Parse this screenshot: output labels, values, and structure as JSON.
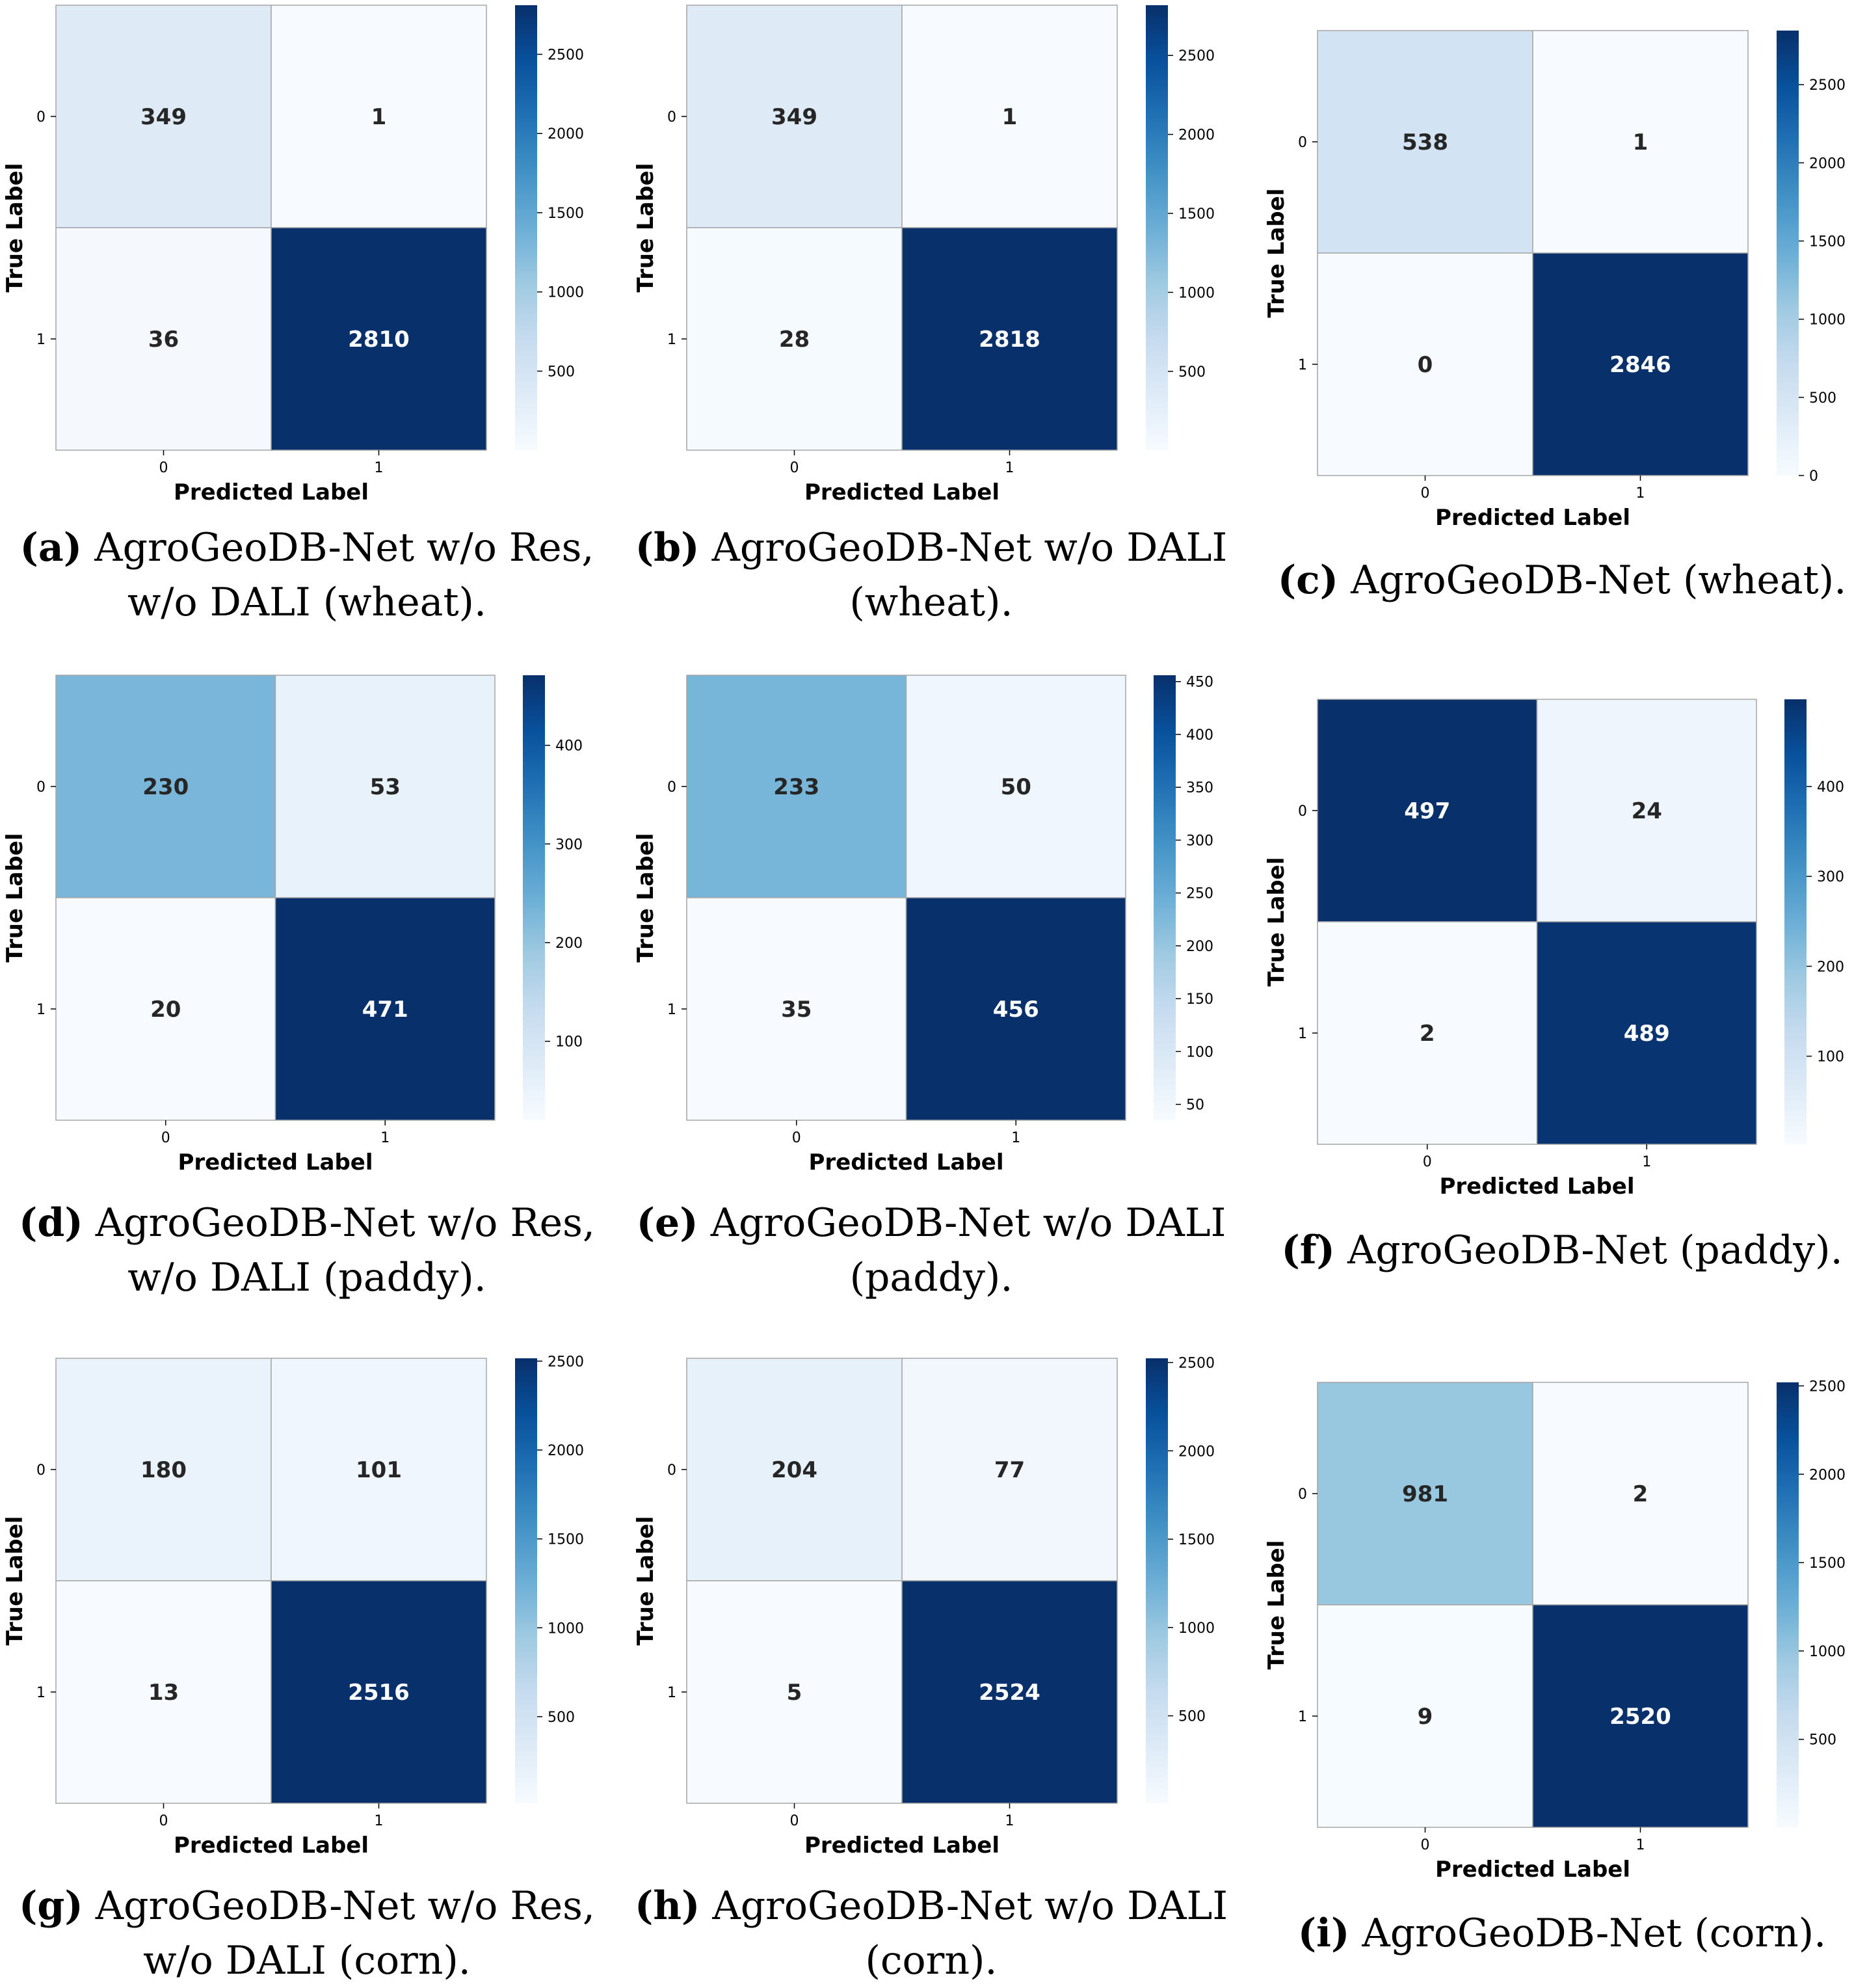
{
  "colors": {
    "cmap": [
      "#f7fbff",
      "#deebf7",
      "#c6dbef",
      "#9ecae1",
      "#6baed6",
      "#4292c6",
      "#2171b5",
      "#08519c",
      "#08306b"
    ],
    "dark_text": "#262626",
    "light_text": "#ffffff",
    "grid_line": "#a6a6a6"
  },
  "chart_data": [
    {
      "id": "a",
      "type": "heatmap",
      "x_categories": [
        "0",
        "1"
      ],
      "y_categories": [
        "0",
        "1"
      ],
      "values": [
        [
          349,
          1
        ],
        [
          36,
          2810
        ]
      ],
      "xlabel": "Predicted Label",
      "ylabel": "True Label",
      "colorbar": {
        "min": 1,
        "max": 2810,
        "ticks": [
          500,
          1000,
          1500,
          2000,
          2500
        ]
      },
      "caption": {
        "label": "(a)",
        "lines": [
          " AgroGeoDB-Net w/o Res,",
          "w/o DALI (wheat)."
        ]
      }
    },
    {
      "id": "b",
      "type": "heatmap",
      "x_categories": [
        "0",
        "1"
      ],
      "y_categories": [
        "0",
        "1"
      ],
      "values": [
        [
          349,
          1
        ],
        [
          28,
          2818
        ]
      ],
      "xlabel": "Predicted Label",
      "ylabel": "True Label",
      "colorbar": {
        "min": 1,
        "max": 2818,
        "ticks": [
          500,
          1000,
          1500,
          2000,
          2500
        ]
      },
      "caption": {
        "label": "(b)",
        "lines": [
          " AgroGeoDB-Net w/o DALI",
          "(wheat)."
        ]
      }
    },
    {
      "id": "c",
      "type": "heatmap",
      "x_categories": [
        "0",
        "1"
      ],
      "y_categories": [
        "0",
        "1"
      ],
      "values": [
        [
          538,
          1
        ],
        [
          0,
          2846
        ]
      ],
      "xlabel": "Predicted Label",
      "ylabel": "True Label",
      "colorbar": {
        "min": 0,
        "max": 2846,
        "ticks": [
          0,
          500,
          1000,
          1500,
          2000,
          2500
        ]
      },
      "caption": {
        "label": "(c)",
        "lines": [
          " AgroGeoDB-Net (wheat)."
        ]
      }
    },
    {
      "id": "d",
      "type": "heatmap",
      "x_categories": [
        "0",
        "1"
      ],
      "y_categories": [
        "0",
        "1"
      ],
      "values": [
        [
          230,
          53
        ],
        [
          20,
          471
        ]
      ],
      "xlabel": "Predicted Label",
      "ylabel": "True Label",
      "colorbar": {
        "min": 20,
        "max": 471,
        "ticks": [
          100,
          200,
          300,
          400
        ]
      },
      "caption": {
        "label": "(d)",
        "lines": [
          " AgroGeoDB-Net w/o Res,",
          "w/o DALI (paddy)."
        ]
      }
    },
    {
      "id": "e",
      "type": "heatmap",
      "x_categories": [
        "0",
        "1"
      ],
      "y_categories": [
        "0",
        "1"
      ],
      "values": [
        [
          233,
          50
        ],
        [
          35,
          456
        ]
      ],
      "xlabel": "Predicted Label",
      "ylabel": "True Label",
      "colorbar": {
        "min": 35,
        "max": 456,
        "ticks": [
          50,
          100,
          150,
          200,
          250,
          300,
          350,
          400,
          450
        ]
      },
      "caption": {
        "label": "(e)",
        "lines": [
          " AgroGeoDB-Net w/o DALI",
          "(paddy)."
        ]
      }
    },
    {
      "id": "f",
      "type": "heatmap",
      "x_categories": [
        "0",
        "1"
      ],
      "y_categories": [
        "0",
        "1"
      ],
      "values": [
        [
          497,
          24
        ],
        [
          2,
          489
        ]
      ],
      "xlabel": "Predicted Label",
      "ylabel": "True Label",
      "colorbar": {
        "min": 2,
        "max": 497,
        "ticks": [
          100,
          200,
          300,
          400
        ]
      },
      "caption": {
        "label": "(f)",
        "lines": [
          " AgroGeoDB-Net (paddy)."
        ]
      }
    },
    {
      "id": "g",
      "type": "heatmap",
      "x_categories": [
        "0",
        "1"
      ],
      "y_categories": [
        "0",
        "1"
      ],
      "values": [
        [
          180,
          101
        ],
        [
          13,
          2516
        ]
      ],
      "xlabel": "Predicted Label",
      "ylabel": "True Label",
      "colorbar": {
        "min": 13,
        "max": 2516,
        "ticks": [
          500,
          1000,
          1500,
          2000,
          2500
        ]
      },
      "caption": {
        "label": "(g)",
        "lines": [
          " AgroGeoDB-Net w/o Res,",
          "w/o DALI (corn)."
        ]
      }
    },
    {
      "id": "h",
      "type": "heatmap",
      "x_categories": [
        "0",
        "1"
      ],
      "y_categories": [
        "0",
        "1"
      ],
      "values": [
        [
          204,
          77
        ],
        [
          5,
          2524
        ]
      ],
      "xlabel": "Predicted Label",
      "ylabel": "True Label",
      "colorbar": {
        "min": 5,
        "max": 2524,
        "ticks": [
          500,
          1000,
          1500,
          2000,
          2500
        ]
      },
      "caption": {
        "label": "(h)",
        "lines": [
          " AgroGeoDB-Net w/o DALI",
          "(corn)."
        ]
      }
    },
    {
      "id": "i",
      "type": "heatmap",
      "x_categories": [
        "0",
        "1"
      ],
      "y_categories": [
        "0",
        "1"
      ],
      "values": [
        [
          981,
          2
        ],
        [
          9,
          2520
        ]
      ],
      "xlabel": "Predicted Label",
      "ylabel": "True Label",
      "colorbar": {
        "min": 2,
        "max": 2520,
        "ticks": [
          500,
          1000,
          1500,
          2000,
          2500
        ]
      },
      "caption": {
        "label": "(i)",
        "lines": [
          " AgroGeoDB-Net (corn)."
        ]
      }
    }
  ]
}
